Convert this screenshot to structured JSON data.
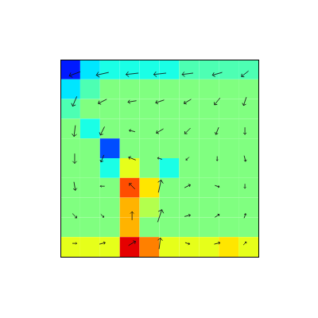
{
  "chart_data": {
    "type": "quiver",
    "xlim": [
      0,
      1
    ],
    "ylim": [
      0,
      1
    ],
    "tick_labels": false,
    "field": {
      "range": [
        -1,
        1
      ],
      "x": [
        0.05,
        0.15,
        0.25,
        0.35,
        0.45,
        0.55,
        0.65,
        0.75,
        0.85,
        0.95
      ],
      "y": [
        0.95,
        0.85,
        0.75,
        0.65,
        0.55,
        0.45,
        0.35,
        0.25,
        0.15,
        0.05
      ],
      "values": [
        [
          -0.7,
          -0.3,
          -0.2,
          -0.2,
          -0.2,
          -0.2,
          -0.1,
          -0.1,
          -0.1,
          -0.1
        ],
        [
          -0.3,
          -0.1,
          0,
          0,
          0,
          0,
          0,
          0,
          0,
          0
        ],
        [
          -0.1,
          0,
          0,
          0,
          0,
          0,
          0,
          0,
          0,
          0
        ],
        [
          0,
          -0.2,
          0,
          0,
          0,
          0,
          0,
          0,
          0,
          0
        ],
        [
          0,
          0,
          -0.6,
          0,
          0,
          0,
          0,
          0,
          0,
          0
        ],
        [
          0,
          0,
          -0.2,
          0.2,
          0,
          -0.2,
          0,
          0,
          0,
          0
        ],
        [
          0,
          0,
          0,
          0.6,
          0.3,
          0,
          0,
          0,
          0,
          0
        ],
        [
          0,
          0,
          0,
          0.4,
          0.1,
          0,
          0,
          0,
          0,
          0
        ],
        [
          0,
          0,
          0,
          0.4,
          0,
          0,
          0,
          0,
          0,
          0
        ],
        [
          0.2,
          0.2,
          0.2,
          0.8,
          0.5,
          0.2,
          0.2,
          0.2,
          0.3,
          0.2
        ]
      ]
    },
    "vectors": {
      "x": [
        0.07,
        0.21,
        0.36,
        0.5,
        0.64,
        0.79,
        0.93
      ],
      "y": [
        0.93,
        0.79,
        0.64,
        0.5,
        0.36,
        0.21,
        0.07
      ],
      "u": [
        [
          -0.8,
          -0.9,
          -0.9,
          -0.9,
          -0.8,
          -0.7,
          -0.5
        ],
        [
          -0.3,
          -0.6,
          -0.6,
          -0.6,
          -0.5,
          -0.4,
          -0.2
        ],
        [
          -0.1,
          -0.3,
          -0.4,
          -0.5,
          -0.4,
          -0.2,
          0.0
        ],
        [
          0.0,
          -0.2,
          -0.5,
          -0.3,
          -0.2,
          0.0,
          0.1
        ],
        [
          0.1,
          -0.3,
          -0.4,
          0.2,
          0.4,
          0.3,
          0.0
        ],
        [
          0.3,
          0.2,
          0.0,
          0.3,
          0.4,
          0.3,
          0.1
        ],
        [
          0.3,
          0.4,
          0.5,
          0.1,
          0.3,
          0.4,
          0.2
        ]
      ],
      "v": [
        [
          -0.3,
          -0.2,
          -0.1,
          -0.1,
          -0.1,
          -0.2,
          -0.4
        ],
        [
          -0.7,
          -0.3,
          -0.1,
          -0.2,
          -0.3,
          -0.5,
          -0.6
        ],
        [
          -0.8,
          -0.6,
          0.1,
          -0.3,
          -0.4,
          -0.5,
          -0.5
        ],
        [
          -0.7,
          -0.5,
          0.2,
          0.1,
          -0.2,
          -0.3,
          -0.4
        ],
        [
          -0.6,
          0.0,
          0.4,
          0.9,
          0.2,
          -0.1,
          -0.3
        ],
        [
          -0.3,
          -0.2,
          0.6,
          0.9,
          0.1,
          0.2,
          0.3
        ],
        [
          0.0,
          0.1,
          0.3,
          0.8,
          -0.1,
          0.1,
          0.2
        ]
      ]
    }
  }
}
